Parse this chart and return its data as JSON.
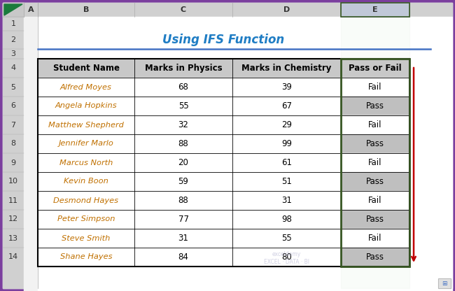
{
  "title": "Using IFS Function",
  "col_headers": [
    "Student Name",
    "Marks in Physics",
    "Marks in Chemistry",
    "Pass or Fail"
  ],
  "rows": [
    [
      "Alfred Moyes",
      "68",
      "39",
      "Fail"
    ],
    [
      "Angela Hopkins",
      "55",
      "67",
      "Pass"
    ],
    [
      "Matthew Shepherd",
      "32",
      "29",
      "Fail"
    ],
    [
      "Jennifer Marlo",
      "88",
      "99",
      "Pass"
    ],
    [
      "Marcus North",
      "20",
      "61",
      "Fail"
    ],
    [
      "Kevin Boon",
      "59",
      "51",
      "Pass"
    ],
    [
      "Desmond Hayes",
      "88",
      "31",
      "Fail"
    ],
    [
      "Peter Simpson",
      "77",
      "98",
      "Pass"
    ],
    [
      "Steve Smith",
      "31",
      "55",
      "Fail"
    ],
    [
      "Shane Hayes",
      "84",
      "80",
      "Pass"
    ]
  ],
  "row_labels": [
    "1",
    "2",
    "3",
    "4",
    "5",
    "6",
    "7",
    "8",
    "9",
    "10",
    "11",
    "12",
    "13",
    "14"
  ],
  "title_color": "#1F7DC4",
  "header_bg": "#C8C8C8",
  "pass_bg": "#BFBFBF",
  "fail_bg": "#FFFFFF",
  "green_border": "#375623",
  "scrollbar_color": "#C00000",
  "bg_color": "#F2F2F2",
  "row_header_bg": "#D0D0D0",
  "col_header_bg": "#D0D0D0",
  "col_e_header_bg": "#C0C8D8",
  "name_color": "#C07000",
  "cell_line_color": "#000000",
  "outer_purple": "#7B3F9E"
}
